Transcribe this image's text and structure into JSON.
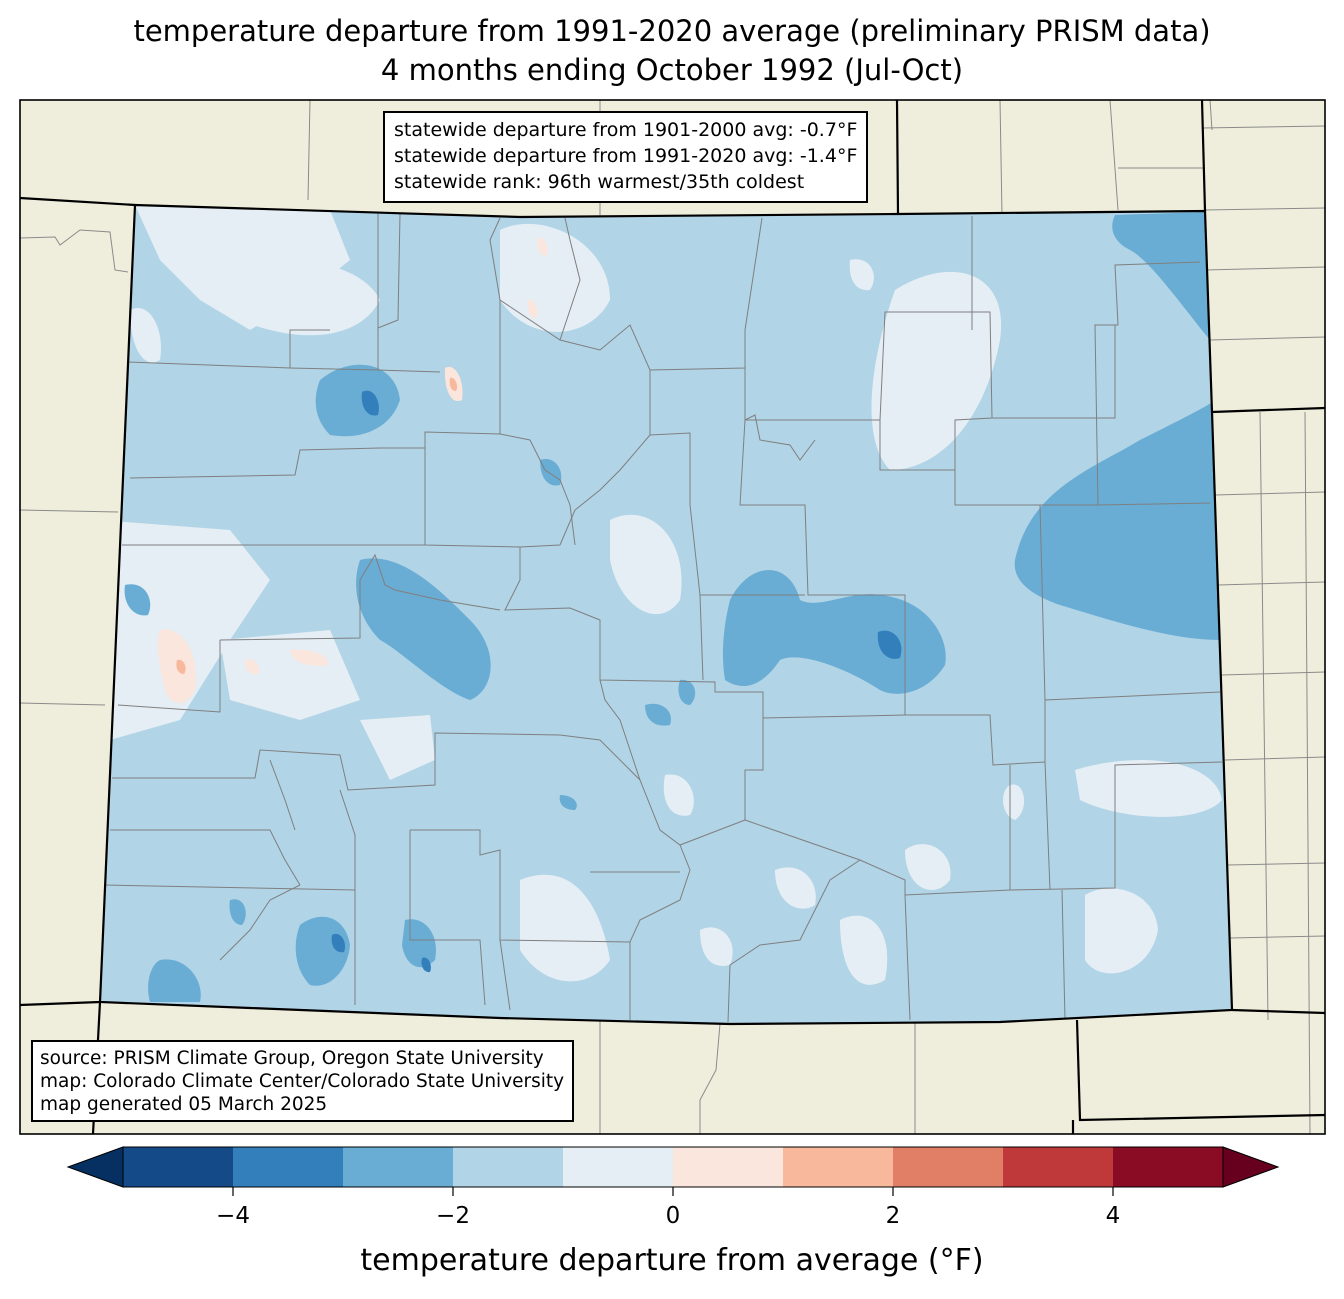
{
  "title": {
    "line1": "temperature departure from 1991-2020 average (preliminary PRISM data)",
    "line2": "4 months ending October 1992 (Jul-Oct)"
  },
  "stats": {
    "line1": "statewide departure from 1901-2000 avg: -0.7°F",
    "line2": "statewide departure from 1991-2020 avg: -1.4°F",
    "line3": "statewide rank: 96th warmest/35th coldest"
  },
  "source": {
    "line1": "source: PRISM Climate Group, Oregon State University",
    "line2": "map: Colorado Climate Center/Colorado State University",
    "line3": "map generated 05 March 2025"
  },
  "colorbar": {
    "label": "temperature departure from average (°F)",
    "ticks": [
      "−4",
      "−2",
      "0",
      "2",
      "4"
    ],
    "colors": [
      "#053061",
      "#144a87",
      "#327fbb",
      "#6aadd4",
      "#b1d4e7",
      "#e5eef4",
      "#fae6dd",
      "#f7b89b",
      "#e17e66",
      "#c0393a",
      "#890c24",
      "#67001f"
    ]
  },
  "map": {
    "background_color": "#efeedd",
    "dominant_anomaly_color": "#b1d4e7"
  }
}
